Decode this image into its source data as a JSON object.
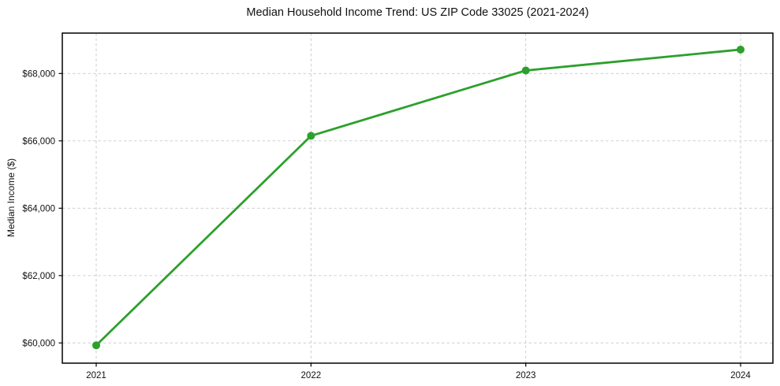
{
  "chart_data": {
    "type": "line",
    "title": "Median Household Income Trend: US ZIP Code 33025 (2021-2024)",
    "xlabel": "",
    "ylabel": "Median Income ($)",
    "x": [
      2021,
      2022,
      2023,
      2024
    ],
    "x_tick_labels": [
      "2021",
      "2022",
      "2023",
      "2024"
    ],
    "series": [
      {
        "name": "median-household-income",
        "values": [
          59930,
          66150,
          68090,
          68710
        ],
        "color": "#2ca02c",
        "marker": "circle",
        "line_width": 2.8,
        "marker_size": 10
      }
    ],
    "ylim": [
      59400,
      69200
    ],
    "yticks": [
      60000,
      62000,
      64000,
      66000,
      68000
    ],
    "ytick_labels": [
      "$60,000",
      "$62,000",
      "$64,000",
      "$66,000",
      "$68,000"
    ],
    "grid": {
      "show": true,
      "style": "dashed",
      "color": "#c9c9c9"
    },
    "legend": "none",
    "colors": {
      "line": "#2ca02c",
      "spine": "#000000",
      "tick": "#000000",
      "text": "#111111",
      "background": "#ffffff"
    }
  }
}
